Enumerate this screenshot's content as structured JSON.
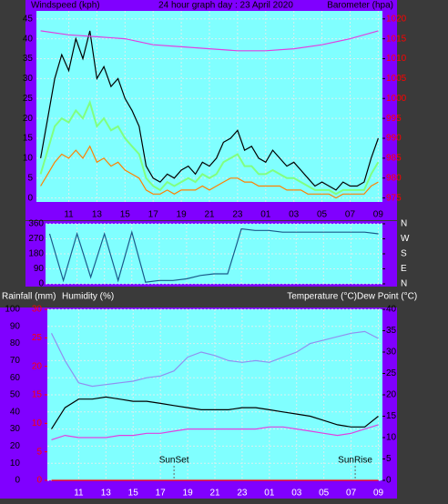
{
  "chart_data": [
    {
      "type": "line",
      "title": "24 hour graph day : 23 April 2020",
      "y_label": "Windspeed (kph)",
      "y2_label": "Barometer (hpa)",
      "x": [
        9,
        9.5,
        10,
        10.5,
        11,
        11.5,
        12,
        12.5,
        13,
        13.5,
        14,
        14.5,
        15,
        15.5,
        16,
        16.5,
        17,
        17.5,
        18,
        18.5,
        19,
        19.5,
        20,
        20.5,
        21,
        21.5,
        22,
        22.5,
        23,
        23.5,
        24,
        24.5,
        25,
        25.5,
        26,
        26.5,
        27,
        27.5,
        28,
        28.5,
        29,
        29.5,
        30,
        30.5,
        31,
        31.5,
        32,
        32.5,
        33
      ],
      "xlim": [
        8.7,
        33.3
      ],
      "xticks": [
        11,
        13,
        15,
        17,
        19,
        21,
        23,
        {
          "value": 25,
          "label": "01"
        },
        {
          "value": 27,
          "label": "03"
        },
        {
          "value": 29,
          "label": "05"
        },
        {
          "value": 31,
          "label": "07"
        },
        {
          "value": 33,
          "label": "09"
        }
      ],
      "ylim": [
        -1,
        47
      ],
      "yticks": [
        0,
        5,
        10,
        15,
        20,
        25,
        30,
        35,
        40,
        45
      ],
      "y2lim": [
        974,
        1022
      ],
      "y2ticks": [
        975,
        980,
        985,
        990,
        995,
        1000,
        1005,
        1010,
        1015,
        1020
      ],
      "y2_color": "#ff0000",
      "grid": true,
      "series": [
        {
          "color": "#80ff80",
          "values": [
            6,
            12,
            18,
            20,
            19,
            22,
            20,
            24,
            18,
            20,
            17,
            18,
            15,
            13,
            11,
            5,
            3,
            2,
            4,
            3,
            4,
            5,
            4,
            6,
            5,
            6,
            9,
            10,
            11,
            8,
            8,
            6,
            6,
            7,
            6,
            5,
            5,
            4,
            3,
            2,
            2,
            2,
            1,
            2,
            2,
            2,
            2,
            6,
            9
          ]
        },
        {
          "color": "#000000",
          "values": [
            10,
            20,
            30,
            36,
            32,
            40,
            35,
            42,
            30,
            33,
            28,
            30,
            25,
            22,
            18,
            8,
            5,
            4,
            6,
            5,
            7,
            8,
            6,
            9,
            8,
            10,
            14,
            15,
            17,
            12,
            13,
            10,
            9,
            12,
            10,
            8,
            9,
            7,
            5,
            3,
            4,
            3,
            2,
            4,
            3,
            3,
            4,
            10,
            15
          ]
        },
        {
          "color": "#ff8000",
          "values": [
            3,
            6,
            9,
            11,
            10,
            12,
            10,
            13,
            9,
            10,
            8,
            9,
            7,
            6,
            5,
            2,
            1,
            1,
            2,
            1,
            2,
            2,
            2,
            3,
            2,
            3,
            4,
            5,
            5,
            4,
            4,
            3,
            3,
            3,
            3,
            2,
            2,
            2,
            1,
            1,
            1,
            1,
            0,
            1,
            1,
            1,
            1,
            3,
            4
          ]
        },
        {
          "color": "#e040e0",
          "axis": "y2",
          "x": [
            9,
            11,
            13,
            15,
            17,
            19,
            21,
            23,
            25,
            27,
            29,
            31,
            33
          ],
          "values": [
            1017,
            1016,
            1015.5,
            1015,
            1013.5,
            1013,
            1012.5,
            1012,
            1012,
            1012.5,
            1013.5,
            1015,
            1017
          ]
        }
      ]
    },
    {
      "type": "line",
      "x": [
        9,
        10,
        11,
        12,
        13,
        14,
        15,
        16,
        17,
        18,
        19,
        20,
        21,
        22,
        23,
        24,
        25,
        26,
        27,
        28,
        29,
        30,
        31,
        32,
        33
      ],
      "xlim": [
        8.7,
        33.3
      ],
      "xticks": [
        11,
        13,
        15,
        17,
        19,
        21,
        23,
        25,
        27,
        29,
        31,
        33
      ],
      "ylim": [
        0,
        360
      ],
      "yticks": [
        0,
        90,
        180,
        270,
        360
      ],
      "y2ticks": [
        {
          "value": 360,
          "label": "N"
        },
        {
          "value": 270,
          "label": "W"
        },
        {
          "value": 180,
          "label": "S"
        },
        {
          "value": 90,
          "label": "E"
        },
        {
          "value": 0,
          "label": "N"
        }
      ],
      "grid": true,
      "series": [
        {
          "color": "#1a5a8a",
          "values": [
            300,
            20,
            300,
            40,
            300,
            20,
            310,
            10,
            20,
            20,
            30,
            50,
            60,
            60,
            330,
            320,
            320,
            310,
            310,
            310,
            310,
            310,
            310,
            310,
            300
          ]
        }
      ]
    },
    {
      "type": "line",
      "rain_label": "Rainfall (mm)",
      "y_label": "Humidity (%)",
      "y2_label": "Temperature (°C)",
      "y3_label": "Dew Point (°C)",
      "x": [
        9,
        10,
        11,
        12,
        13,
        14,
        15,
        16,
        17,
        18,
        19,
        20,
        21,
        22,
        23,
        24,
        25,
        26,
        27,
        28,
        29,
        30,
        31,
        32,
        33
      ],
      "xlim": [
        8.7,
        33.3
      ],
      "xticks": [
        11,
        13,
        15,
        17,
        19,
        21,
        23,
        {
          "value": 25,
          "label": "01"
        },
        {
          "value": 27,
          "label": "03"
        },
        {
          "value": 29,
          "label": "05"
        },
        {
          "value": 31,
          "label": "07"
        },
        {
          "value": 33,
          "label": "09"
        }
      ],
      "ylim": [
        0,
        100
      ],
      "yticks": [
        0,
        10,
        20,
        30,
        40,
        50,
        60,
        70,
        80,
        90,
        100
      ],
      "rainlim": [
        0,
        30
      ],
      "rainticks": [
        0,
        5,
        10,
        15,
        20,
        25,
        30
      ],
      "rain_color": "#ff0000",
      "y2lim": [
        0,
        40
      ],
      "y2ticks": [
        0,
        5,
        10,
        15,
        20,
        25,
        30,
        35,
        40
      ],
      "grid": true,
      "annotations": [
        {
          "text": "SunSet",
          "x": 18
        },
        {
          "text": "SunRise",
          "x": 31.3
        }
      ],
      "series": [
        {
          "color": "#9090f0",
          "values": [
            86,
            70,
            57,
            55,
            56,
            57,
            58,
            60,
            61,
            64,
            72,
            75,
            73,
            70,
            69,
            70,
            69,
            72,
            75,
            80,
            82,
            84,
            86,
            87,
            83
          ]
        },
        {
          "color": "#000000",
          "axis": "y2",
          "values": [
            12,
            17,
            19,
            19,
            19.5,
            19,
            18.5,
            18.5,
            18,
            17.5,
            17,
            16.5,
            16.5,
            16.5,
            17,
            17,
            16.5,
            16,
            15.5,
            15,
            14,
            13,
            12.5,
            12.5,
            15
          ]
        },
        {
          "color": "#e040e0",
          "axis": "y2",
          "values": [
            9.5,
            10.5,
            10,
            10,
            10,
            10.5,
            10.5,
            11,
            11,
            11.5,
            12,
            12,
            12,
            12,
            12,
            12,
            12.5,
            12.5,
            12,
            11.5,
            11,
            10.5,
            11,
            12,
            13
          ]
        },
        {
          "color": "#ff0000",
          "axis": "rain",
          "values": [
            0,
            0,
            0,
            0,
            0,
            0,
            0,
            0,
            0,
            0,
            0,
            0,
            0,
            0,
            0,
            0,
            0,
            0,
            0,
            0,
            0,
            0,
            0,
            0,
            0
          ]
        }
      ]
    }
  ]
}
